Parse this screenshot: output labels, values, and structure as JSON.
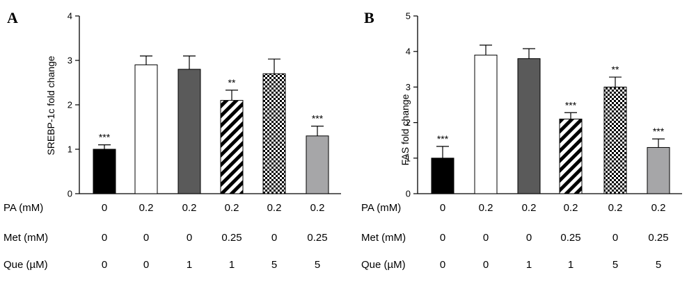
{
  "chart_data": [
    {
      "type": "bar",
      "panel": "A",
      "ylabel": "SREBP-1c fold change",
      "ylim": [
        0,
        4
      ],
      "yticks": [
        "0",
        "1",
        "2",
        "3",
        "4"
      ],
      "values": [
        1.0,
        2.9,
        2.8,
        2.1,
        2.7,
        1.3
      ],
      "errors": [
        0.1,
        0.2,
        0.3,
        0.23,
        0.33,
        0.22
      ],
      "significance": [
        "***",
        "",
        "",
        "**",
        "",
        "***"
      ],
      "fills": [
        "solid-black",
        "white",
        "dark-gray",
        "diagonal-stripes",
        "checkerboard",
        "light-gray"
      ],
      "conditions": [
        {
          "label": "PA (mM)",
          "values": [
            "0",
            "0.2",
            "0.2",
            "0.2",
            "0.2",
            "0.2"
          ]
        },
        {
          "label": "Met (mM)",
          "values": [
            "0",
            "0",
            "0",
            "0.25",
            "0",
            "0.25"
          ]
        },
        {
          "label": "Que (µM)",
          "values": [
            "0",
            "0",
            "1",
            "1",
            "5",
            "5"
          ]
        }
      ]
    },
    {
      "type": "bar",
      "panel": "B",
      "ylabel": "FAS fold change",
      "ylim": [
        0,
        5
      ],
      "yticks": [
        "0",
        "1",
        "2",
        "3",
        "4",
        "5"
      ],
      "values": [
        1.0,
        3.9,
        3.8,
        2.1,
        3.0,
        1.3
      ],
      "errors": [
        0.33,
        0.28,
        0.28,
        0.18,
        0.28,
        0.24
      ],
      "significance": [
        "***",
        "",
        "",
        "***",
        "**",
        "***"
      ],
      "fills": [
        "solid-black",
        "white",
        "dark-gray",
        "diagonal-stripes",
        "checkerboard",
        "light-gray"
      ],
      "conditions": [
        {
          "label": "PA (mM)",
          "values": [
            "0",
            "0.2",
            "0.2",
            "0.2",
            "0.2",
            "0.2"
          ]
        },
        {
          "label": "Met (mM)",
          "values": [
            "0",
            "0",
            "0",
            "0.25",
            "0",
            "0.25"
          ]
        },
        {
          "label": "Que (µM)",
          "values": [
            "0",
            "0",
            "1",
            "1",
            "5",
            "5"
          ]
        }
      ]
    }
  ],
  "colors": {
    "dark_gray": "#5a5a5a",
    "light_gray": "#a6a6a8",
    "black": "#000000"
  }
}
